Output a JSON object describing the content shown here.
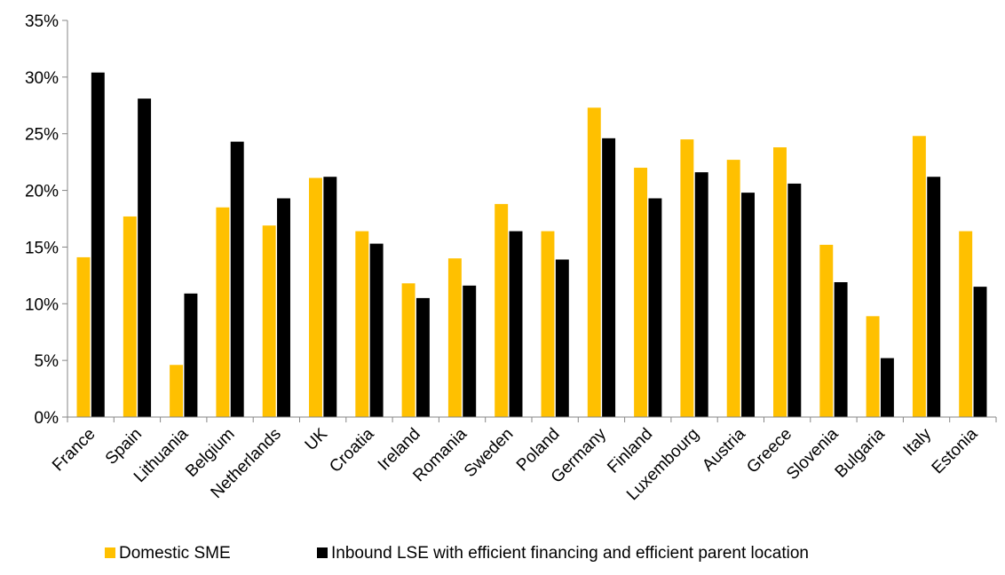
{
  "chart_data": {
    "type": "bar",
    "title": "",
    "xlabel": "",
    "ylabel": "",
    "ylim": [
      0,
      35
    ],
    "y_tick_values": [
      0,
      5,
      10,
      15,
      20,
      25,
      30,
      35
    ],
    "y_tick_labels": [
      "0%",
      "5%",
      "10%",
      "15%",
      "20%",
      "25%",
      "30%",
      "35%"
    ],
    "grid": false,
    "legend_position": "bottom",
    "categories": [
      "France",
      "Spain",
      "Lithuania",
      "Belgium",
      "Netherlands",
      "UK",
      "Croatia",
      "Ireland",
      "Romania",
      "Sweden",
      "Poland",
      "Germany",
      "Finland",
      "Luxembourg",
      "Austria",
      "Greece",
      "Slovenia",
      "Bulgaria",
      "Italy",
      "Estonia"
    ],
    "series": [
      {
        "name": "Domestic SME",
        "color": "#FFC000",
        "values": [
          14.1,
          17.7,
          4.6,
          18.5,
          16.9,
          21.1,
          16.4,
          11.8,
          14.0,
          18.8,
          16.4,
          27.3,
          22.0,
          24.5,
          22.7,
          23.8,
          15.2,
          8.9,
          24.8,
          16.4
        ]
      },
      {
        "name": "Inbound LSE with efficient financing and efficient parent location",
        "color": "#000000",
        "values": [
          30.4,
          28.1,
          10.9,
          24.3,
          19.3,
          21.2,
          15.3,
          10.5,
          11.6,
          16.4,
          13.9,
          24.6,
          19.3,
          21.6,
          19.8,
          20.6,
          11.9,
          5.2,
          21.2,
          11.5
        ]
      }
    ]
  }
}
